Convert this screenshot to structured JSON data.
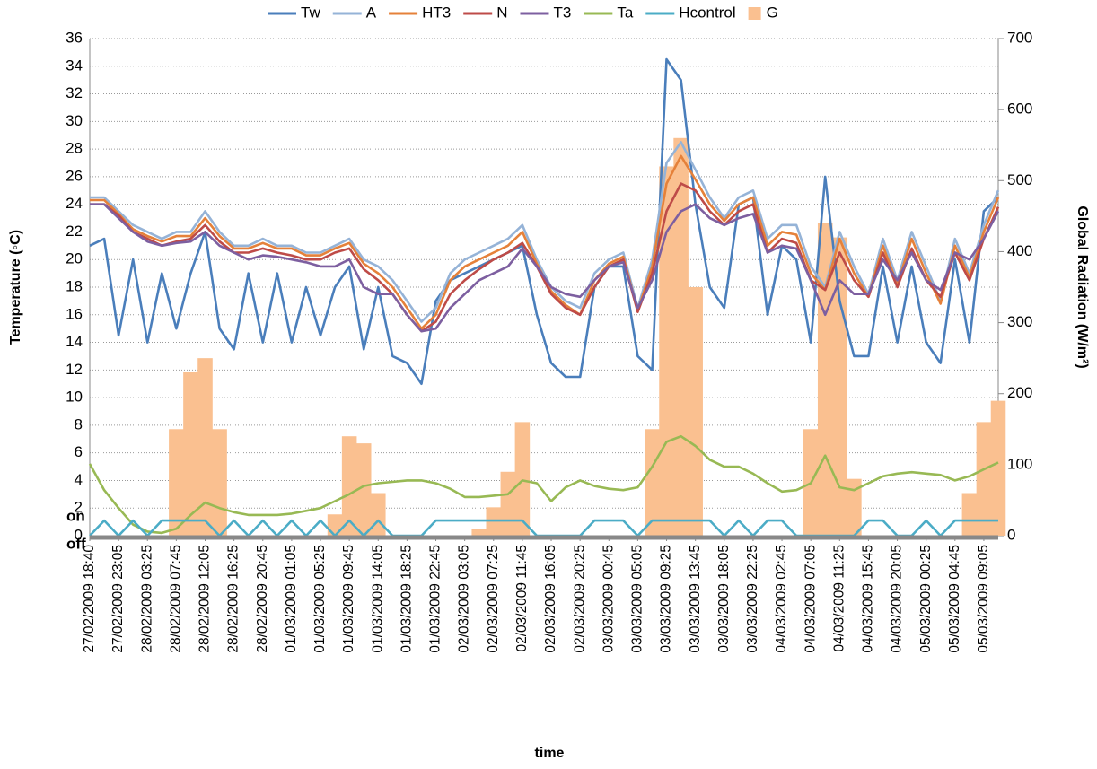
{
  "chart_data": {
    "type": "line",
    "x_label": "time",
    "y_label": "Temperature (◦C)",
    "y2_label": "Global Radiation (W/m²)",
    "ylim": [
      0,
      36
    ],
    "yticks": [
      0,
      2,
      4,
      6,
      8,
      10,
      12,
      14,
      16,
      18,
      20,
      22,
      24,
      26,
      28,
      30,
      32,
      34,
      36
    ],
    "y2lim": [
      0,
      700
    ],
    "y2ticks": [
      0,
      100,
      200,
      300,
      400,
      500,
      600,
      700
    ],
    "grid": true,
    "legend": "top",
    "annotations": [
      "on",
      "off"
    ],
    "categories": [
      "27/02/2009 18:40",
      null,
      "27/02/2009 23:05",
      null,
      "28/02/2009 03:25",
      null,
      "28/02/2009 07:45",
      null,
      "28/02/2009 12:05",
      null,
      "28/02/2009 16:25",
      null,
      "28/02/2009 20:45",
      null,
      "01/03/2009 01:05",
      null,
      "01/03/2009 05:25",
      null,
      "01/03/2009 09:45",
      null,
      "01/03/2009 14:05",
      null,
      "01/03/2009 18:25",
      null,
      "01/03/2009 22:45",
      null,
      "02/03/2009 03:05",
      null,
      "02/03/2009 07:25",
      null,
      "02/03/2009 11:45",
      null,
      "02/03/2009 16:05",
      null,
      "02/03/2009 20:25",
      null,
      "03/03/2009 00:45",
      null,
      "03/03/2009 05:05",
      null,
      "03/03/2009 09:25",
      null,
      "03/03/2009 13:45",
      null,
      "03/03/2009 18:05",
      null,
      "03/03/2009 22:25",
      null,
      "04/03/2009 02:45",
      null,
      "04/03/2009 07:05",
      null,
      "04/03/2009 11:25",
      null,
      "04/03/2009 15:45",
      null,
      "04/03/2009 20:05",
      null,
      "05/03/2009 00:25",
      null,
      "05/03/2009 04:45",
      null,
      "05/03/2009 09:05",
      null
    ],
    "series": [
      {
        "name": "Tw",
        "color": "#4a7ebb",
        "values": [
          21,
          21.5,
          14.5,
          20,
          14,
          19,
          15,
          19,
          22,
          15,
          13.5,
          19,
          14,
          19,
          14,
          18,
          14.5,
          18,
          19.5,
          13.5,
          18,
          13,
          12.5,
          11,
          17,
          18.5,
          19,
          19.5,
          20,
          20.5,
          21,
          16,
          12.5,
          11.5,
          11.5,
          18,
          19.5,
          19.5,
          13,
          12,
          34.5,
          33,
          24,
          18,
          16.5,
          24,
          24.5,
          16,
          21,
          20,
          14,
          26,
          17,
          13,
          13,
          19.5,
          14,
          19.5,
          14,
          12.5,
          20,
          14,
          23.5,
          24.5
        ]
      },
      {
        "name": "A",
        "color": "#95b3d7",
        "values": [
          24.5,
          24.5,
          23.5,
          22.5,
          22,
          21.5,
          22,
          22,
          23.5,
          22,
          21,
          21,
          21.5,
          21,
          21,
          20.5,
          20.5,
          21,
          21.5,
          20,
          19.5,
          18.5,
          17,
          15.5,
          16.5,
          19,
          20,
          20.5,
          21,
          21.5,
          22.5,
          20,
          18,
          17,
          16.5,
          19,
          20,
          20.5,
          16.5,
          20,
          27,
          28.5,
          26.5,
          24.5,
          23,
          24.5,
          25,
          21.5,
          22.5,
          22.5,
          19.5,
          18,
          22,
          19.5,
          17.5,
          21.5,
          18.5,
          22,
          19.5,
          17,
          21.5,
          19,
          22.5,
          25
        ]
      },
      {
        "name": "HT3",
        "color": "#e5813a",
        "values": [
          24.3,
          24.3,
          23.3,
          22.2,
          21.7,
          21.3,
          21.7,
          21.7,
          23,
          21.7,
          20.8,
          20.8,
          21.2,
          20.8,
          20.8,
          20.3,
          20.3,
          20.8,
          21.2,
          19.7,
          19,
          18,
          16.5,
          15,
          16,
          18.5,
          19.5,
          20,
          20.5,
          21,
          22,
          19.7,
          17.7,
          16.7,
          16,
          18.5,
          19.7,
          20.2,
          16.3,
          19.5,
          25.5,
          27.5,
          25.8,
          24,
          22.8,
          24,
          24.5,
          21,
          22,
          21.8,
          19,
          17.8,
          21.5,
          19,
          17.3,
          21,
          18.2,
          21.5,
          19,
          16.8,
          21,
          18.7,
          22,
          24.5
        ]
      },
      {
        "name": "N",
        "color": "#be4b48",
        "values": [
          24,
          24,
          23.2,
          22,
          21.5,
          21,
          21.3,
          21.5,
          22.5,
          21.3,
          20.5,
          20.5,
          20.8,
          20.5,
          20.3,
          20,
          20,
          20.5,
          20.8,
          19.3,
          18.5,
          17.5,
          16,
          14.8,
          15.5,
          17.5,
          18.5,
          19.3,
          20,
          20.5,
          21.2,
          19.5,
          17.5,
          16.5,
          16,
          18,
          19.5,
          20,
          16.2,
          19,
          23.5,
          25.5,
          25,
          23.5,
          22.5,
          23.5,
          24,
          20.5,
          21.5,
          21.2,
          18.5,
          17.8,
          20.5,
          18.5,
          17.3,
          20.5,
          18,
          20.8,
          18.5,
          17.3,
          20.5,
          18.5,
          21.5,
          23.8
        ]
      },
      {
        "name": "T3",
        "color": "#7d5fa0",
        "values": [
          24,
          24,
          23,
          22,
          21.3,
          21,
          21.2,
          21.3,
          22,
          21,
          20.5,
          20,
          20.3,
          20.2,
          20,
          19.8,
          19.5,
          19.5,
          20,
          18,
          17.5,
          17.5,
          16,
          14.8,
          15,
          16.5,
          17.5,
          18.5,
          19,
          19.5,
          20.8,
          19.5,
          18,
          17.5,
          17.3,
          18.5,
          19.5,
          19.8,
          16.5,
          18.5,
          22,
          23.5,
          24,
          23,
          22.5,
          23,
          23.3,
          20.5,
          21,
          20.8,
          18.5,
          16,
          18.5,
          17.5,
          17.5,
          20,
          18.5,
          20.5,
          18.5,
          17.8,
          20.5,
          20,
          21.5,
          23.5
        ]
      },
      {
        "name": "Ta",
        "color": "#98b954",
        "values": [
          5.2,
          3.3,
          2,
          0.8,
          0.3,
          0.2,
          0.5,
          1.5,
          2.4,
          2,
          1.7,
          1.5,
          1.5,
          1.5,
          1.6,
          1.8,
          2,
          2.5,
          3,
          3.6,
          3.8,
          3.9,
          4,
          4,
          3.8,
          3.4,
          2.8,
          2.8,
          2.9,
          3,
          4,
          3.8,
          2.5,
          3.5,
          4,
          3.6,
          3.4,
          3.3,
          3.5,
          5,
          6.8,
          7.2,
          6.5,
          5.5,
          5,
          5,
          4.5,
          3.8,
          3.2,
          3.3,
          3.8,
          5.8,
          3.5,
          3.3,
          3.8,
          4.3,
          4.5,
          4.6,
          4.5,
          4.4,
          4,
          4.3,
          4.8,
          5.3
        ]
      },
      {
        "name": "Hcontrol",
        "color": "#4bacc6",
        "values": [
          0,
          1.1,
          0,
          1.1,
          0,
          1.1,
          1.1,
          1.1,
          1.1,
          0,
          1.1,
          0,
          1.1,
          0,
          1.1,
          0,
          1.1,
          0,
          1.1,
          0,
          1.1,
          0,
          0,
          0,
          1.1,
          1.1,
          1.1,
          1.1,
          1.1,
          1.1,
          1.1,
          0,
          0,
          0,
          0,
          1.1,
          1.1,
          1.1,
          0,
          1.1,
          1.1,
          1.1,
          1.1,
          1.1,
          0,
          1.1,
          0,
          1.1,
          1.1,
          0,
          0,
          0,
          0,
          0,
          1.1,
          1.1,
          0,
          0,
          1.1,
          0,
          1.1,
          1.1,
          1.1,
          1.1
        ]
      },
      {
        "name": "G",
        "color": "#fac090",
        "type": "area",
        "axis": "y2",
        "values": [
          0,
          0,
          0,
          0,
          0,
          0,
          150,
          230,
          250,
          150,
          0,
          0,
          0,
          0,
          0,
          0,
          0,
          30,
          140,
          130,
          60,
          0,
          0,
          0,
          0,
          0,
          0,
          10,
          40,
          90,
          160,
          0,
          0,
          0,
          0,
          0,
          0,
          0,
          0,
          150,
          520,
          560,
          350,
          0,
          0,
          0,
          0,
          0,
          0,
          0,
          150,
          440,
          420,
          80,
          0,
          0,
          0,
          0,
          0,
          0,
          0,
          60,
          160,
          190
        ]
      }
    ]
  }
}
